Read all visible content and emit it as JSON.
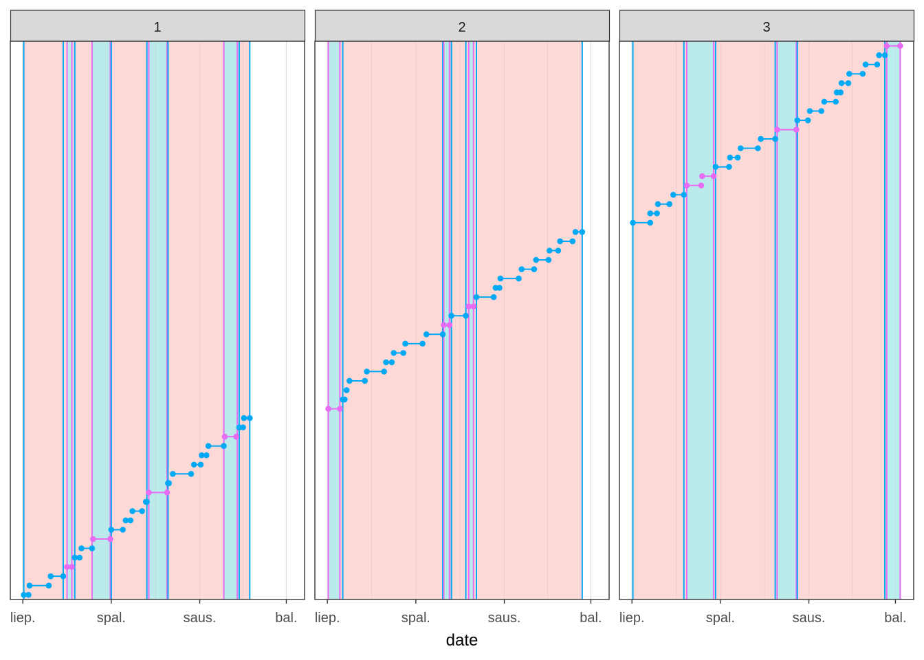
{
  "chart_data": {
    "type": "line",
    "title": "",
    "xlabel": "date",
    "ylabel": "",
    "x_units": "days since 1 July",
    "xlim": [
      -13,
      293
    ],
    "ylim": [
      -0.5,
      59.5
    ],
    "x_ticks": [
      {
        "day": 0,
        "label": "liep."
      },
      {
        "day": 92,
        "label": "spal."
      },
      {
        "day": 184,
        "label": "saus."
      },
      {
        "day": 274,
        "label": "bal."
      }
    ],
    "x_minor_ticks": [
      46,
      138,
      229
    ],
    "grid": true,
    "colors": {
      "blue": "#00A9F4",
      "magenta": "#E76BF3",
      "pink_band": "#FCD5D3",
      "cyan_band": "#B3ECEC"
    },
    "panels": [
      {
        "label": "1",
        "segments": [
          {
            "level": 0,
            "x": [
              1,
              6
            ],
            "type": "blue"
          },
          {
            "level": 1,
            "x": [
              7,
              27
            ],
            "type": "blue"
          },
          {
            "level": 2,
            "x": [
              29,
              42
            ],
            "type": "blue"
          },
          {
            "level": 3,
            "x": [
              46,
              51
            ],
            "type": "magenta"
          },
          {
            "level": 4,
            "x": [
              54,
              59
            ],
            "type": "blue"
          },
          {
            "level": 5,
            "x": [
              61,
              72
            ],
            "type": "blue"
          },
          {
            "level": 6,
            "x": [
              73,
              91
            ],
            "type": "magenta"
          },
          {
            "level": 7,
            "x": [
              92,
              104
            ],
            "type": "blue"
          },
          {
            "level": 8,
            "x": [
              107,
              112
            ],
            "type": "blue"
          },
          {
            "level": 9,
            "x": [
              114,
              124
            ],
            "type": "blue"
          },
          {
            "level": 10,
            "x": [
              128,
              129
            ],
            "type": "blue"
          },
          {
            "level": 11,
            "x": [
              131,
              150
            ],
            "type": "magenta"
          },
          {
            "level": 12,
            "x": [
              151,
              152
            ],
            "type": "blue"
          },
          {
            "level": 13,
            "x": [
              156,
              175
            ],
            "type": "blue"
          },
          {
            "level": 14,
            "x": [
              178,
              185
            ],
            "type": "blue"
          },
          {
            "level": 15,
            "x": [
              186,
              191
            ],
            "type": "blue"
          },
          {
            "level": 16,
            "x": [
              193,
              209
            ],
            "type": "blue"
          },
          {
            "level": 17,
            "x": [
              210,
              222
            ],
            "type": "magenta"
          },
          {
            "level": 18,
            "x": [
              225,
              229
            ],
            "type": "blue"
          },
          {
            "level": 19,
            "x": [
              230,
              236
            ],
            "type": "blue"
          }
        ],
        "vlines": [
          {
            "x": 1,
            "type": "blue"
          },
          {
            "x": 42,
            "type": "blue"
          },
          {
            "x": 46,
            "type": "magenta"
          },
          {
            "x": 51,
            "type": "magenta"
          },
          {
            "x": 54,
            "type": "blue"
          },
          {
            "x": 72,
            "type": "magenta"
          },
          {
            "x": 91,
            "type": "magenta"
          },
          {
            "x": 92,
            "type": "blue"
          },
          {
            "x": 129,
            "type": "blue"
          },
          {
            "x": 131,
            "type": "magenta"
          },
          {
            "x": 150,
            "type": "magenta"
          },
          {
            "x": 151,
            "type": "blue"
          },
          {
            "x": 209,
            "type": "magenta"
          },
          {
            "x": 223,
            "type": "magenta"
          },
          {
            "x": 225,
            "type": "blue"
          },
          {
            "x": 236,
            "type": "blue"
          }
        ],
        "bands": [
          {
            "x": [
              1,
              236
            ],
            "type": "pink"
          },
          {
            "x": [
              46,
              51
            ],
            "type": "cyan"
          },
          {
            "x": [
              72,
              91
            ],
            "type": "cyan"
          },
          {
            "x": [
              131,
              150
            ],
            "type": "cyan"
          },
          {
            "x": [
              209,
              223
            ],
            "type": "cyan"
          }
        ]
      },
      {
        "label": "2",
        "segments": [
          {
            "level": 20,
            "x": [
              1,
              13
            ],
            "type": "magenta"
          },
          {
            "level": 21,
            "x": [
              16,
              18
            ],
            "type": "blue"
          },
          {
            "level": 22,
            "x": [
              20,
              20
            ],
            "type": "blue"
          },
          {
            "level": 23,
            "x": [
              23,
              39
            ],
            "type": "blue"
          },
          {
            "level": 24,
            "x": [
              41,
              59
            ],
            "type": "blue"
          },
          {
            "level": 25,
            "x": [
              61,
              67
            ],
            "type": "blue"
          },
          {
            "level": 26,
            "x": [
              69,
              79
            ],
            "type": "blue"
          },
          {
            "level": 27,
            "x": [
              81,
              99
            ],
            "type": "blue"
          },
          {
            "level": 28,
            "x": [
              103,
              120
            ],
            "type": "blue"
          },
          {
            "level": 29,
            "x": [
              121,
              127
            ],
            "type": "magenta"
          },
          {
            "level": 30,
            "x": [
              129,
              144
            ],
            "type": "blue"
          },
          {
            "level": 31,
            "x": [
              147,
              152
            ],
            "type": "magenta"
          },
          {
            "level": 32,
            "x": [
              155,
              173
            ],
            "type": "blue"
          },
          {
            "level": 33,
            "x": [
              175,
              179
            ],
            "type": "blue"
          },
          {
            "level": 34,
            "x": [
              180,
              199
            ],
            "type": "blue"
          },
          {
            "level": 35,
            "x": [
              202,
              215
            ],
            "type": "blue"
          },
          {
            "level": 36,
            "x": [
              217,
              230
            ],
            "type": "blue"
          },
          {
            "level": 37,
            "x": [
              231,
              240
            ],
            "type": "blue"
          },
          {
            "level": 38,
            "x": [
              242,
              255
            ],
            "type": "blue"
          },
          {
            "level": 39,
            "x": [
              258,
              265
            ],
            "type": "blue"
          }
        ],
        "vlines": [
          {
            "x": 1,
            "type": "magenta"
          },
          {
            "x": 13,
            "type": "magenta"
          },
          {
            "x": 16,
            "type": "blue"
          },
          {
            "x": 120,
            "type": "blue"
          },
          {
            "x": 121,
            "type": "magenta"
          },
          {
            "x": 127,
            "type": "magenta"
          },
          {
            "x": 129,
            "type": "blue"
          },
          {
            "x": 144,
            "type": "blue"
          },
          {
            "x": 147,
            "type": "magenta"
          },
          {
            "x": 152,
            "type": "magenta"
          },
          {
            "x": 155,
            "type": "blue"
          },
          {
            "x": 265,
            "type": "blue"
          }
        ],
        "bands": [
          {
            "x": [
              1,
              265
            ],
            "type": "pink"
          },
          {
            "x": [
              1,
              13
            ],
            "type": "cyan"
          },
          {
            "x": [
              121,
              127
            ],
            "type": "cyan"
          },
          {
            "x": [
              147,
              152
            ],
            "type": "cyan"
          }
        ]
      },
      {
        "label": "3",
        "segments": [
          {
            "level": 40,
            "x": [
              1,
              19
            ],
            "type": "blue"
          },
          {
            "level": 41,
            "x": [
              19,
              26
            ],
            "type": "blue"
          },
          {
            "level": 42,
            "x": [
              27,
              39
            ],
            "type": "blue"
          },
          {
            "level": 43,
            "x": [
              43,
              54
            ],
            "type": "blue"
          },
          {
            "level": 44,
            "x": [
              57,
              72
            ],
            "type": "magenta"
          },
          {
            "level": 45,
            "x": [
              73,
              85
            ],
            "type": "magenta"
          },
          {
            "level": 46,
            "x": [
              87,
              101
            ],
            "type": "blue"
          },
          {
            "level": 47,
            "x": [
              102,
              110
            ],
            "type": "blue"
          },
          {
            "level": 48,
            "x": [
              113,
              131
            ],
            "type": "blue"
          },
          {
            "level": 49,
            "x": [
              134,
              149
            ],
            "type": "blue"
          },
          {
            "level": 50,
            "x": [
              151,
              171
            ],
            "type": "magenta"
          },
          {
            "level": 51,
            "x": [
              172,
              183
            ],
            "type": "blue"
          },
          {
            "level": 52,
            "x": [
              185,
              197
            ],
            "type": "blue"
          },
          {
            "level": 53,
            "x": [
              200,
              212
            ],
            "type": "blue"
          },
          {
            "level": 54,
            "x": [
              213,
              217
            ],
            "type": "blue"
          },
          {
            "level": 55,
            "x": [
              218,
              225
            ],
            "type": "blue"
          },
          {
            "level": 56,
            "x": [
              226,
              240
            ],
            "type": "blue"
          },
          {
            "level": 57,
            "x": [
              243,
              255
            ],
            "type": "blue"
          },
          {
            "level": 58,
            "x": [
              257,
              263
            ],
            "type": "blue"
          },
          {
            "level": 59,
            "x": [
              265,
              279
            ],
            "type": "magenta"
          }
        ],
        "vlines": [
          {
            "x": 1,
            "type": "blue"
          },
          {
            "x": 54,
            "type": "blue"
          },
          {
            "x": 57,
            "type": "magenta"
          },
          {
            "x": 85,
            "type": "magenta"
          },
          {
            "x": 87,
            "type": "blue"
          },
          {
            "x": 149,
            "type": "blue"
          },
          {
            "x": 151,
            "type": "magenta"
          },
          {
            "x": 171,
            "type": "magenta"
          },
          {
            "x": 172,
            "type": "blue"
          },
          {
            "x": 263,
            "type": "blue"
          },
          {
            "x": 265,
            "type": "magenta"
          },
          {
            "x": 279,
            "type": "magenta"
          }
        ],
        "bands": [
          {
            "x": [
              1,
              265
            ],
            "type": "pink"
          },
          {
            "x": [
              57,
              85
            ],
            "type": "cyan"
          },
          {
            "x": [
              151,
              171
            ],
            "type": "cyan"
          },
          {
            "x": [
              265,
              279
            ],
            "type": "cyan"
          }
        ]
      }
    ]
  }
}
